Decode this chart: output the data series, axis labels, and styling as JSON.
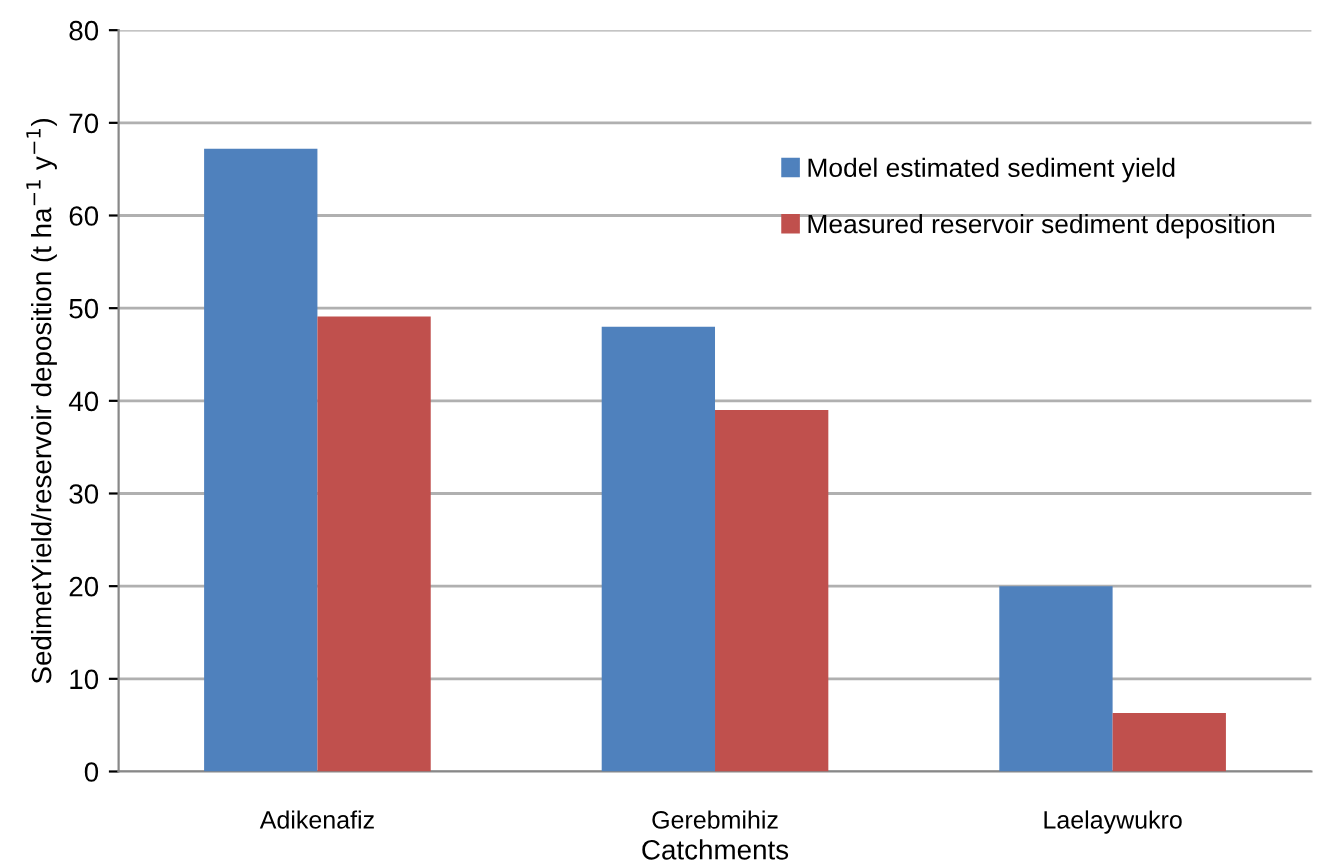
{
  "chart_data": {
    "type": "bar",
    "xlabel": "Catchments",
    "ylabel": "SedimetYield/reservoir deposition (t ha$^{−1}$ y$^{−1}$)",
    "categories": [
      "Adikenafiz",
      "Gerebmihiz",
      "Laelaywukro"
    ],
    "series": [
      {
        "name": "Model estimated sediment yield",
        "color": "#4f81bd",
        "values": [
          67.2,
          48,
          20
        ]
      },
      {
        "name": "Measured reservoir sediment deposition",
        "color": "#c0504d",
        "values": [
          49.1,
          39,
          6.3
        ]
      }
    ],
    "ylim": [
      0,
      80
    ],
    "yticks": [
      0,
      10,
      20,
      30,
      40,
      50,
      60,
      70,
      80
    ],
    "grid": "y",
    "legend": "top right"
  }
}
